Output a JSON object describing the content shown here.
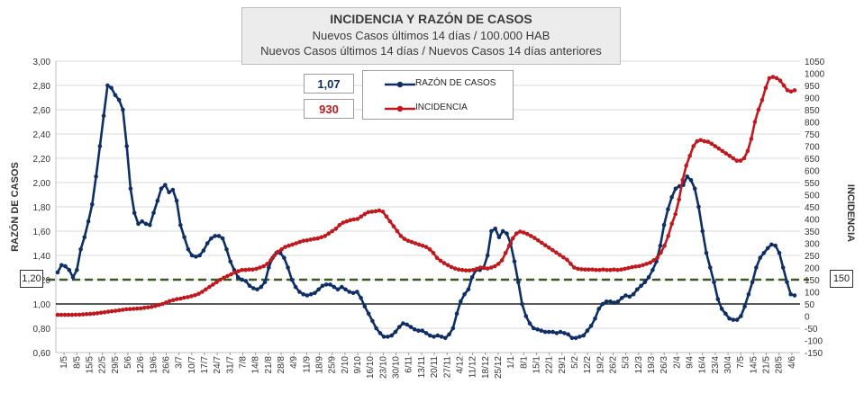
{
  "title": {
    "main": "INCIDENCIA Y RAZÓN DE CASOS",
    "line2": "Nuevos Casos últimos 14 días / 100.000  HAB",
    "line3": "Nuevos Casos últimos 14 días / Nuevos Casos 14 días anteriores"
  },
  "current": {
    "ratio": "1,07",
    "incidence": "930"
  },
  "reference": {
    "left": "1,20",
    "right": "150"
  },
  "colors": {
    "ratio": "#0d2f66",
    "incidence": "#c0191d",
    "threshold": "#385a22",
    "grid": "#d9d9d9"
  },
  "chart_data": {
    "type": "line",
    "x_labels": [
      "1/5",
      "8/5",
      "15/5",
      "22/5",
      "29/5",
      "5/6",
      "12/6",
      "19/6",
      "26/6",
      "3/7",
      "10/7",
      "17/7",
      "24/7",
      "31/7",
      "7/8",
      "14/8",
      "21/8",
      "28/8",
      "4/9",
      "11/9",
      "18/9",
      "25/9",
      "2/10",
      "9/10",
      "16/10",
      "23/10",
      "30/10",
      "6/11",
      "13/11",
      "20/11",
      "27/11",
      "4/12",
      "11/12",
      "18/12",
      "25/12",
      "1/1",
      "8/1",
      "15/1",
      "22/1",
      "29/1",
      "5/2",
      "12/2",
      "19/2",
      "26/2",
      "5/3",
      "12/3",
      "19/3",
      "26/3",
      "2/4",
      "9/4",
      "16/4",
      "23/4",
      "30/4",
      "7/5",
      "14/5",
      "21/5",
      "28/5",
      "4/6"
    ],
    "left_axis": {
      "label": "RAZÓN DE CASOS",
      "min": 0.6,
      "max": 3.0,
      "step": 0.2,
      "ticks": [
        "0,60",
        "0,80",
        "1,00",
        "1,20",
        "1,40",
        "1,60",
        "1,80",
        "2,00",
        "2,20",
        "2,40",
        "2,60",
        "2,80",
        "3,00"
      ]
    },
    "right_axis": {
      "label": "INCIDENCIA",
      "min": -150,
      "max": 1050,
      "step": 50,
      "ticks": [
        "-150",
        "-100",
        "-50",
        "0",
        "50",
        "100",
        "150",
        "200",
        "250",
        "300",
        "350",
        "400",
        "450",
        "500",
        "550",
        "600",
        "650",
        "700",
        "750",
        "800",
        "850",
        "900",
        "950",
        "1000",
        "1050"
      ]
    },
    "threshold": {
      "axis": "left",
      "value": 1.2
    },
    "series": [
      {
        "name": "RAZÓN DE CASOS",
        "axis": "left",
        "values": [
          1.26,
          1.32,
          1.31,
          1.28,
          1.22,
          1.28,
          1.45,
          1.55,
          1.68,
          1.82,
          2.05,
          2.3,
          2.55,
          2.8,
          2.78,
          2.72,
          2.68,
          2.6,
          2.3,
          1.95,
          1.75,
          1.66,
          1.68,
          1.66,
          1.65,
          1.75,
          1.85,
          1.95,
          1.98,
          1.92,
          1.94,
          1.85,
          1.65,
          1.55,
          1.45,
          1.4,
          1.39,
          1.4,
          1.44,
          1.5,
          1.54,
          1.56,
          1.56,
          1.54,
          1.45,
          1.35,
          1.28,
          1.22,
          1.2,
          1.19,
          1.15,
          1.13,
          1.12,
          1.14,
          1.18,
          1.3,
          1.38,
          1.42,
          1.42,
          1.38,
          1.3,
          1.2,
          1.14,
          1.1,
          1.08,
          1.07,
          1.08,
          1.09,
          1.12,
          1.15,
          1.16,
          1.16,
          1.14,
          1.12,
          1.14,
          1.12,
          1.1,
          1.09,
          1.1,
          1.05,
          0.98,
          0.92,
          0.86,
          0.8,
          0.76,
          0.73,
          0.73,
          0.74,
          0.77,
          0.81,
          0.84,
          0.83,
          0.81,
          0.79,
          0.78,
          0.78,
          0.76,
          0.74,
          0.73,
          0.74,
          0.73,
          0.72,
          0.75,
          0.8,
          0.92,
          1.02,
          1.08,
          1.12,
          1.22,
          1.28,
          1.28,
          1.3,
          1.4,
          1.6,
          1.62,
          1.55,
          1.6,
          1.58,
          1.5,
          1.35,
          1.18,
          1.0,
          0.9,
          0.84,
          0.8,
          0.79,
          0.78,
          0.77,
          0.77,
          0.77,
          0.76,
          0.77,
          0.76,
          0.75,
          0.72,
          0.72,
          0.73,
          0.74,
          0.78,
          0.82,
          0.88,
          0.96,
          1.0,
          1.02,
          1.02,
          1.01,
          1.02,
          1.05,
          1.07,
          1.06,
          1.08,
          1.12,
          1.15,
          1.18,
          1.22,
          1.28,
          1.35,
          1.48,
          1.65,
          1.78,
          1.88,
          1.95,
          1.97,
          1.98,
          2.05,
          2.02,
          1.95,
          1.8,
          1.6,
          1.42,
          1.3,
          1.18,
          1.04,
          0.96,
          0.92,
          0.88,
          0.87,
          0.87,
          0.9,
          0.98,
          1.08,
          1.18,
          1.3,
          1.38,
          1.42,
          1.46,
          1.49,
          1.48,
          1.42,
          1.3,
          1.18,
          1.08,
          1.07
        ]
      },
      {
        "name": "INCIDENCIA",
        "axis": "right",
        "values": [
          5,
          5,
          5,
          5,
          5,
          6,
          6,
          7,
          8,
          9,
          10,
          12,
          14,
          16,
          18,
          20,
          22,
          24,
          26,
          28,
          29,
          30,
          31,
          32,
          34,
          36,
          38,
          42,
          46,
          50,
          56,
          62,
          66,
          70,
          72,
          76,
          78,
          82,
          86,
          92,
          100,
          110,
          120,
          130,
          140,
          150,
          158,
          165,
          172,
          180,
          185,
          190,
          190,
          192,
          192,
          195,
          200,
          205,
          215,
          230,
          250,
          265,
          275,
          285,
          290,
          295,
          300,
          305,
          310,
          312,
          315,
          318,
          320,
          325,
          330,
          340,
          350,
          360,
          375,
          385,
          390,
          395,
          398,
          400,
          410,
          420,
          428,
          430,
          432,
          435,
          430,
          410,
          390,
          370,
          350,
          330,
          318,
          310,
          305,
          300,
          295,
          290,
          285,
          275,
          260,
          240,
          228,
          218,
          210,
          202,
          196,
          192,
          190,
          188,
          188,
          190,
          195,
          200,
          198,
          196,
          200,
          205,
          215,
          230,
          260,
          290,
          320,
          340,
          348,
          344,
          338,
          330,
          322,
          312,
          302,
          292,
          282,
          272,
          262,
          252,
          242,
          232,
          215,
          200,
          195,
          193,
          192,
          192,
          192,
          190,
          190,
          192,
          190,
          190,
          192,
          190,
          192,
          195,
          198,
          202,
          204,
          206,
          210,
          215,
          220,
          230,
          240,
          262,
          290,
          330,
          380,
          420,
          480,
          560,
          620,
          660,
          700,
          720,
          725,
          720,
          718,
          710,
          700,
          690,
          680,
          670,
          660,
          650,
          640,
          640,
          650,
          680,
          730,
          800,
          850,
          890,
          940,
          980,
          985,
          980,
          970,
          950,
          930,
          925,
          930
        ]
      }
    ]
  }
}
